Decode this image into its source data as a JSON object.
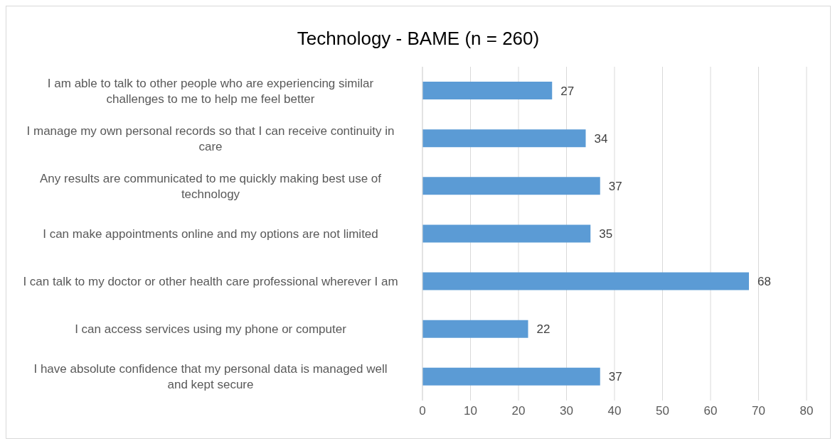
{
  "chart_data": {
    "type": "bar",
    "orientation": "horizontal",
    "title": "Technology - BAME (n = 260)",
    "categories": [
      "I am able to talk to other people who are experiencing similar challenges to me to help me feel better",
      "I manage my own personal records so that I can receive continuity in care",
      "Any results are communicated to me quickly making best use of technology",
      "I can make appointments online and my options are not limited",
      "I can talk to my doctor or other health care professional wherever I am",
      "I can access services using my phone or computer",
      "I have absolute confidence that my personal data is managed well and kept secure"
    ],
    "values": [
      27,
      34,
      37,
      35,
      68,
      22,
      37
    ],
    "color": "#5b9bd5",
    "xlim": [
      0,
      80
    ],
    "xticks": [
      0,
      10,
      20,
      30,
      40,
      50,
      60,
      70,
      80
    ],
    "grid": "x",
    "data_labels": true,
    "legend": false
  }
}
